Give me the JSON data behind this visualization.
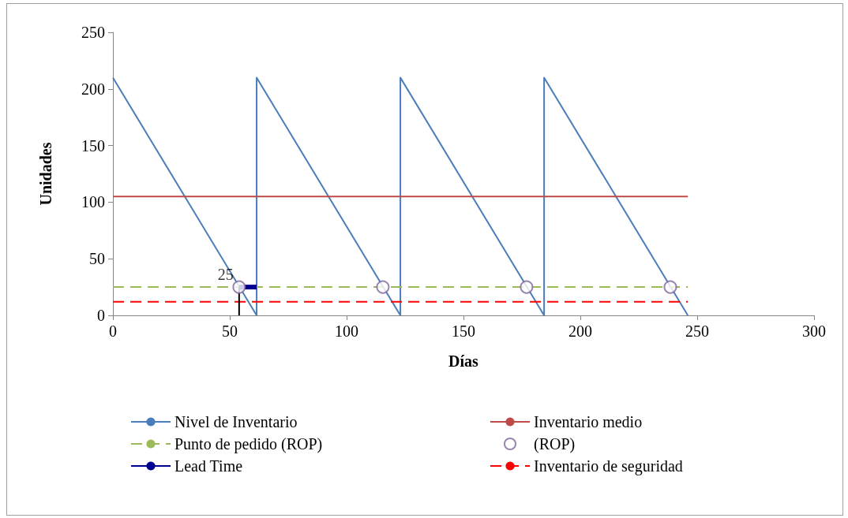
{
  "chart_data": {
    "type": "line",
    "xlabel": "Días",
    "ylabel": "Unidades",
    "xlim": [
      0,
      300
    ],
    "xticks": [
      0,
      50,
      100,
      150,
      200,
      250,
      300
    ],
    "ylim": [
      0,
      250
    ],
    "yticks": [
      0,
      50,
      100,
      150,
      200,
      250
    ],
    "grid": false,
    "legend": "bottom",
    "marker": "none",
    "annotations": [
      {
        "text": "25",
        "x": 54,
        "y": 25
      }
    ],
    "series": [
      {
        "name": "Nivel de Inventario",
        "color": "#4a7ebb",
        "x": [
          0,
          61.5,
          61.5,
          123,
          123,
          184.5,
          184.5,
          246
        ],
        "values": [
          210,
          0,
          210,
          0,
          210,
          0,
          210,
          0
        ]
      },
      {
        "name": "Inventario medio",
        "color": "#be4b48",
        "x": [
          0,
          246
        ],
        "values": [
          105,
          105
        ]
      },
      {
        "name": "Punto de pedido (ROP)",
        "color": "#9bbb59",
        "line_style": "dashed",
        "x": [
          0,
          246
        ],
        "values": [
          25,
          25
        ]
      },
      {
        "name": "(ROP)",
        "type": "scatter",
        "marker": "circle",
        "color": "#7e649e",
        "x": [
          54,
          115.5,
          177,
          238.5
        ],
        "values": [
          25,
          25,
          25,
          25
        ]
      },
      {
        "name": "Lead Time",
        "color": "#000090",
        "x": [
          54,
          61.5
        ],
        "values": [
          25,
          25
        ]
      },
      {
        "name": "Inventario de seguridad",
        "color": "#ff0000",
        "line_style": "dashed",
        "x": [
          0,
          246
        ],
        "values": [
          12,
          12
        ]
      },
      {
        "color": "#000000",
        "x": [
          54,
          54
        ],
        "values": [
          0,
          25
        ]
      }
    ]
  }
}
